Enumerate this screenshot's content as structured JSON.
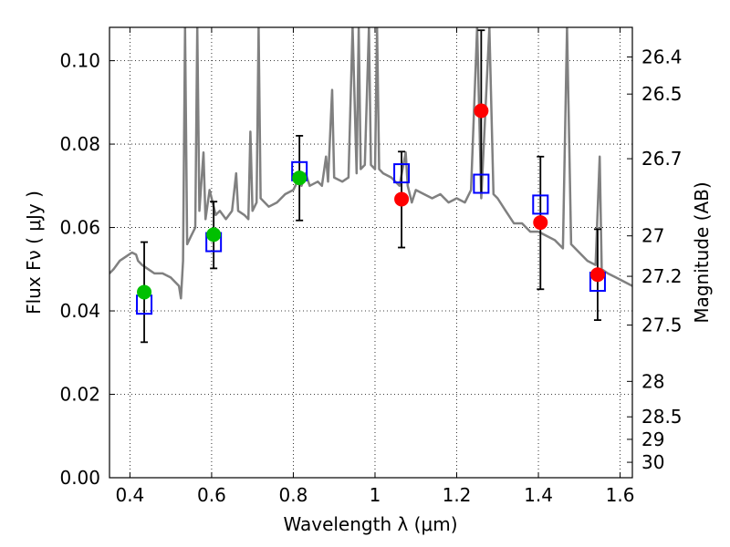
{
  "chart_data": {
    "type": "scatter",
    "xlabel": "Wavelength  λ (μm)",
    "ylabel": "Flux  Fν  ( μJy )",
    "ylabel_right": "Magnitude (AB)",
    "xlim": [
      0.35,
      1.63
    ],
    "ylim": [
      0.0,
      0.108
    ],
    "grid": true,
    "x_ticks": [
      0.4,
      0.6,
      0.8,
      1.0,
      1.2,
      1.4,
      1.6
    ],
    "x_tick_labels": [
      "0.4",
      "0.6",
      "0.8",
      "1",
      "1.2",
      "1.4",
      "1.6"
    ],
    "y_ticks": [
      0.0,
      0.02,
      0.04,
      0.06,
      0.08,
      0.1
    ],
    "y_tick_labels": [
      "0.00",
      "0.02",
      "0.04",
      "0.06",
      "0.08",
      "0.10"
    ],
    "right_ticks": [
      {
        "label": "26.4",
        "flux": 0.1009
      },
      {
        "label": "26.5",
        "flux": 0.092
      },
      {
        "label": "26.7",
        "flux": 0.0765
      },
      {
        "label": "27",
        "flux": 0.058
      },
      {
        "label": "27.2",
        "flux": 0.0483
      },
      {
        "label": "27.5",
        "flux": 0.0366
      },
      {
        "label": "28",
        "flux": 0.0231
      },
      {
        "label": "28.5",
        "flux": 0.0146
      },
      {
        "label": "29",
        "flux": 0.0092
      },
      {
        "label": "30",
        "flux": 0.0037
      }
    ],
    "series": [
      {
        "kind": "line",
        "color": "#808080",
        "points": [
          [
            0.35,
            0.049
          ],
          [
            0.36,
            0.05
          ],
          [
            0.375,
            0.052
          ],
          [
            0.39,
            0.053
          ],
          [
            0.405,
            0.054
          ],
          [
            0.415,
            0.0535
          ],
          [
            0.42,
            0.052
          ],
          [
            0.43,
            0.051
          ],
          [
            0.445,
            0.05
          ],
          [
            0.46,
            0.049
          ],
          [
            0.48,
            0.049
          ],
          [
            0.5,
            0.048
          ],
          [
            0.51,
            0.047
          ],
          [
            0.52,
            0.046
          ],
          [
            0.525,
            0.043
          ],
          [
            0.53,
            0.052
          ],
          [
            0.535,
            0.108
          ],
          [
            0.54,
            0.056
          ],
          [
            0.55,
            0.058
          ],
          [
            0.56,
            0.06
          ],
          [
            0.565,
            0.108
          ],
          [
            0.57,
            0.064
          ],
          [
            0.58,
            0.078
          ],
          [
            0.585,
            0.062
          ],
          [
            0.595,
            0.069
          ],
          [
            0.61,
            0.063
          ],
          [
            0.62,
            0.064
          ],
          [
            0.635,
            0.062
          ],
          [
            0.65,
            0.064
          ],
          [
            0.66,
            0.073
          ],
          [
            0.665,
            0.064
          ],
          [
            0.68,
            0.063
          ],
          [
            0.69,
            0.062
          ],
          [
            0.695,
            0.083
          ],
          [
            0.7,
            0.064
          ],
          [
            0.71,
            0.066
          ],
          [
            0.715,
            0.108
          ],
          [
            0.72,
            0.067
          ],
          [
            0.74,
            0.065
          ],
          [
            0.76,
            0.066
          ],
          [
            0.78,
            0.068
          ],
          [
            0.8,
            0.069
          ],
          [
            0.81,
            0.071
          ],
          [
            0.82,
            0.07
          ],
          [
            0.83,
            0.073
          ],
          [
            0.84,
            0.07
          ],
          [
            0.86,
            0.071
          ],
          [
            0.87,
            0.07
          ],
          [
            0.88,
            0.077
          ],
          [
            0.885,
            0.071
          ],
          [
            0.895,
            0.093
          ],
          [
            0.9,
            0.072
          ],
          [
            0.92,
            0.071
          ],
          [
            0.935,
            0.072
          ],
          [
            0.945,
            0.108
          ],
          [
            0.955,
            0.073
          ],
          [
            0.96,
            0.108
          ],
          [
            0.965,
            0.074
          ],
          [
            0.975,
            0.075
          ],
          [
            0.985,
            0.108
          ],
          [
            0.99,
            0.075
          ],
          [
            1.0,
            0.074
          ],
          [
            1.005,
            0.108
          ],
          [
            1.01,
            0.074
          ],
          [
            1.02,
            0.073
          ],
          [
            1.04,
            0.072
          ],
          [
            1.06,
            0.07
          ],
          [
            1.075,
            0.078
          ],
          [
            1.08,
            0.07
          ],
          [
            1.09,
            0.066
          ],
          [
            1.1,
            0.069
          ],
          [
            1.12,
            0.068
          ],
          [
            1.14,
            0.067
          ],
          [
            1.16,
            0.068
          ],
          [
            1.18,
            0.066
          ],
          [
            1.2,
            0.067
          ],
          [
            1.22,
            0.066
          ],
          [
            1.235,
            0.069
          ],
          [
            1.25,
            0.108
          ],
          [
            1.26,
            0.067
          ],
          [
            1.28,
            0.108
          ],
          [
            1.29,
            0.068
          ],
          [
            1.3,
            0.067
          ],
          [
            1.32,
            0.064
          ],
          [
            1.34,
            0.061
          ],
          [
            1.36,
            0.061
          ],
          [
            1.38,
            0.059
          ],
          [
            1.4,
            0.059
          ],
          [
            1.42,
            0.058
          ],
          [
            1.44,
            0.057
          ],
          [
            1.46,
            0.055
          ],
          [
            1.47,
            0.108
          ],
          [
            1.48,
            0.056
          ],
          [
            1.5,
            0.054
          ],
          [
            1.52,
            0.052
          ],
          [
            1.54,
            0.051
          ],
          [
            1.55,
            0.077
          ],
          [
            1.555,
            0.05
          ],
          [
            1.57,
            0.049
          ],
          [
            1.59,
            0.048
          ],
          [
            1.61,
            0.047
          ],
          [
            1.63,
            0.046
          ]
        ]
      },
      {
        "kind": "open-square",
        "color": "#0000ff",
        "points": [
          [
            0.435,
            0.0415
          ],
          [
            0.605,
            0.0565
          ],
          [
            0.815,
            0.0735
          ],
          [
            1.065,
            0.073
          ],
          [
            1.26,
            0.0705
          ],
          [
            1.405,
            0.0655
          ],
          [
            1.545,
            0.047
          ]
        ]
      },
      {
        "kind": "filled-circle",
        "color": "#00c000",
        "points": [
          [
            0.435,
            0.0445
          ],
          [
            0.605,
            0.0583
          ],
          [
            0.815,
            0.0719
          ]
        ]
      },
      {
        "kind": "filled-circle",
        "color": "#ff0000",
        "points": [
          [
            1.065,
            0.0668
          ],
          [
            1.26,
            0.088
          ],
          [
            1.405,
            0.0612
          ],
          [
            1.545,
            0.0487
          ]
        ]
      },
      {
        "kind": "errorbar",
        "color": "#000000",
        "points": [
          [
            0.435,
            0.0325,
            0.0565
          ],
          [
            0.605,
            0.0502,
            0.0662
          ],
          [
            0.815,
            0.0617,
            0.082
          ],
          [
            1.065,
            0.0552,
            0.0782
          ],
          [
            1.26,
            0.0683,
            0.1073
          ],
          [
            1.405,
            0.0452,
            0.077
          ],
          [
            1.545,
            0.0378,
            0.0596
          ]
        ]
      }
    ]
  }
}
